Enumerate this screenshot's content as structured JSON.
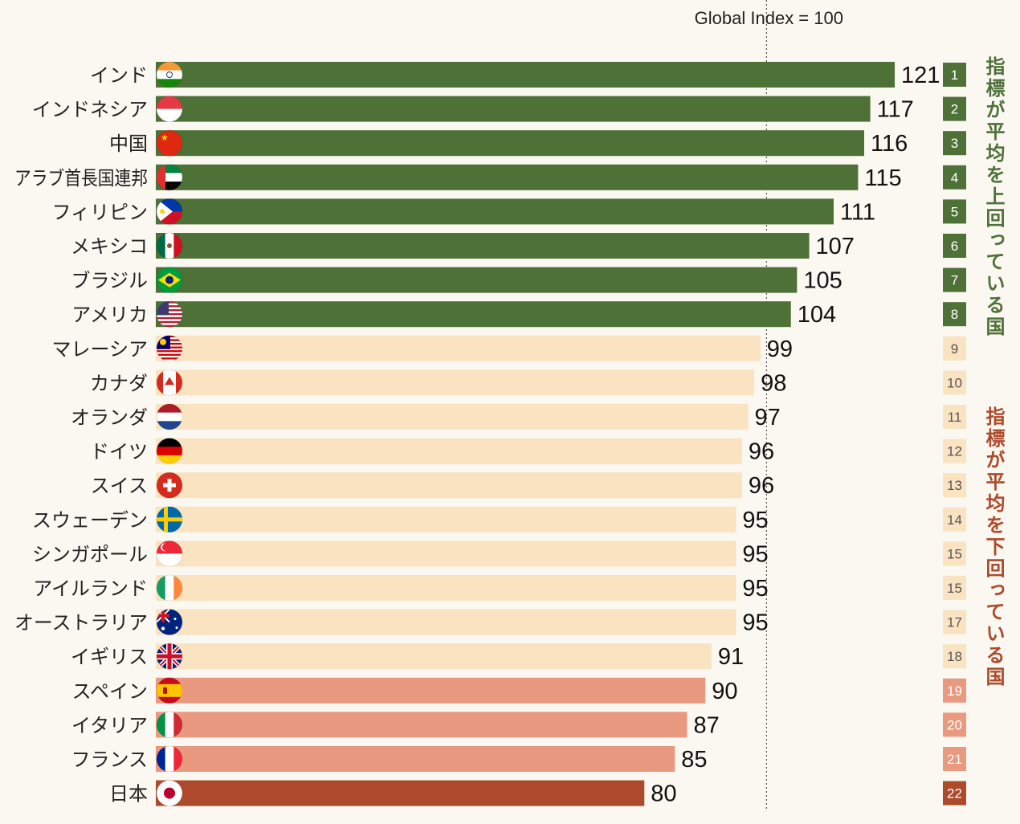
{
  "chart_data": {
    "type": "bar",
    "orientation": "horizontal",
    "reference": {
      "value": 100,
      "label": "Global Index = 100"
    },
    "xlim": [
      0,
      121
    ],
    "categories": [
      "インド",
      "インドネシア",
      "中国",
      "アラブ首長国連邦",
      "フィリピン",
      "メキシコ",
      "ブラジル",
      "アメリカ",
      "マレーシア",
      "カナダ",
      "オランダ",
      "ドイツ",
      "スイス",
      "スウェーデン",
      "シンガポール",
      "アイルランド",
      "オーストラリア",
      "イギリス",
      "スペイン",
      "イタリア",
      "フランス",
      "日本"
    ],
    "values": [
      121,
      117,
      116,
      115,
      111,
      107,
      105,
      104,
      99,
      98,
      97,
      96,
      96,
      95,
      95,
      95,
      95,
      91,
      90,
      87,
      85,
      80
    ],
    "ranks": [
      "1",
      "2",
      "3",
      "4",
      "5",
      "6",
      "7",
      "8",
      "9",
      "10",
      "11",
      "12",
      "13",
      "14",
      "15",
      "15",
      "17",
      "18",
      "19",
      "20",
      "21",
      "22"
    ],
    "groups": [
      "above",
      "above",
      "above",
      "above",
      "above",
      "above",
      "above",
      "above",
      "mid",
      "mid",
      "mid",
      "mid",
      "mid",
      "mid",
      "mid",
      "mid",
      "mid",
      "mid",
      "low",
      "low",
      "low",
      "japan"
    ],
    "flags": [
      "india-flag-icon",
      "indonesia-flag-icon",
      "china-flag-icon",
      "uae-flag-icon",
      "philippines-flag-icon",
      "mexico-flag-icon",
      "brazil-flag-icon",
      "usa-flag-icon",
      "malaysia-flag-icon",
      "canada-flag-icon",
      "netherlands-flag-icon",
      "germany-flag-icon",
      "switzerland-flag-icon",
      "sweden-flag-icon",
      "singapore-flag-icon",
      "ireland-flag-icon",
      "australia-flag-icon",
      "uk-flag-icon",
      "spain-flag-icon",
      "italy-flag-icon",
      "france-flag-icon",
      "japan-flag-icon"
    ],
    "colors": {
      "above": "#4e7138",
      "mid": "#fae3c1",
      "low": "#e99980",
      "japan": "#ad4a2b",
      "background": "#fbf7f1"
    },
    "annotations": {
      "above_average": "指標が平均を上回っている国",
      "below_average": "指標が平均を下回っている国"
    }
  }
}
